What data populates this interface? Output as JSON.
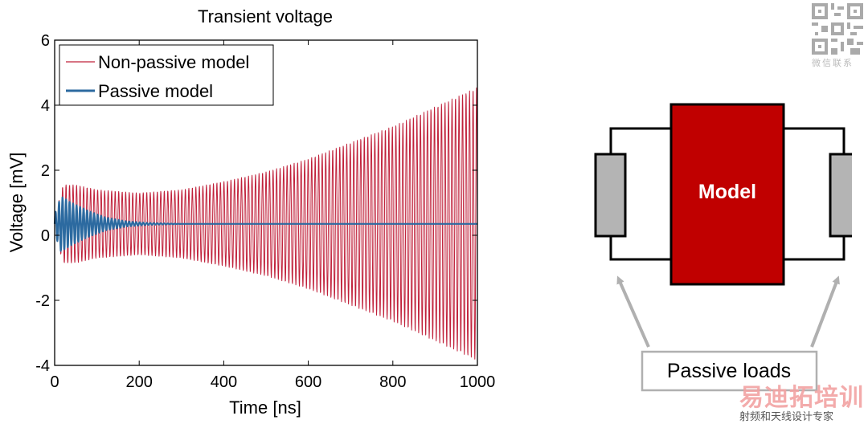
{
  "chart_data": {
    "type": "line",
    "title": "Transient voltage",
    "xlabel": "Time [ns]",
    "ylabel": "Voltage [mV]",
    "xlim": [
      0,
      1000
    ],
    "ylim": [
      -4,
      6
    ],
    "xticks": [
      "0",
      "200",
      "400",
      "600",
      "800",
      "1000"
    ],
    "yticks": [
      "-4",
      "-2",
      "0",
      "2",
      "4",
      "6"
    ],
    "grid": false,
    "legend_position": "top-left",
    "series": [
      {
        "name": "Non-passive model",
        "color": "#c0203a",
        "offset": 0.35,
        "period_ns": 8.3,
        "envelope": {
          "x": [
            0,
            20,
            50,
            100,
            200,
            300,
            400,
            500,
            600,
            700,
            800,
            900,
            1000
          ],
          "y": [
            0.2,
            1.2,
            1.2,
            1.05,
            0.95,
            1.05,
            1.3,
            1.6,
            2.0,
            2.5,
            3.0,
            3.6,
            4.2
          ]
        }
      },
      {
        "name": "Passive model",
        "color": "#2c6aa0",
        "offset": 0.35,
        "period_ns": 8.3,
        "envelope": {
          "x": [
            0,
            15,
            40,
            80,
            120,
            170,
            220,
            300,
            1000
          ],
          "y": [
            0.3,
            0.85,
            0.65,
            0.4,
            0.2,
            0.08,
            0.03,
            0.0,
            0.0
          ]
        }
      }
    ]
  },
  "diagram": {
    "model_label": "Model",
    "loads_label": "Passive loads",
    "model_color": "#c00000",
    "load_color": "#b4b4b4"
  },
  "watermark": {
    "qr_caption": "微信联系",
    "brand": "易迪拓培训",
    "subtitle": "射频和天线设计专家"
  }
}
